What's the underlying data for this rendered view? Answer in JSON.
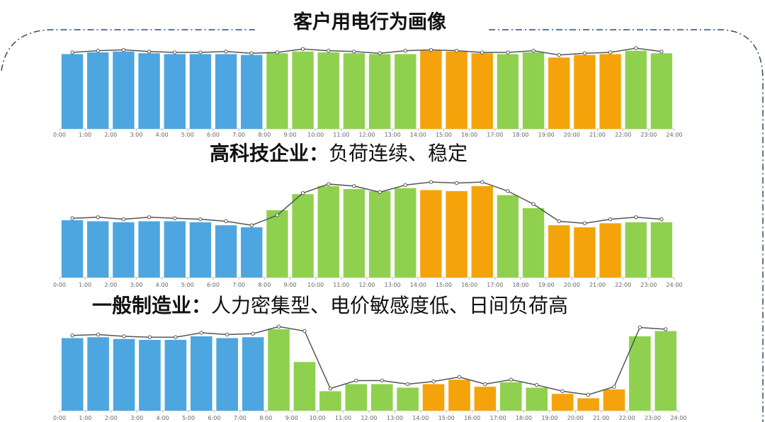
{
  "title": "客户用电行为画像",
  "chart_data": [
    {
      "type": "bar",
      "xtick_labels": [
        "0:00",
        "1:00",
        "2:00",
        "3:00",
        "4:00",
        "5:00",
        "6:00",
        "7:00",
        "8:00",
        "9:00",
        "10:00",
        "11:00",
        "12:00",
        "13:00",
        "14:00",
        "15:00",
        "16:00",
        "17:00",
        "18:00",
        "19:00",
        "20:00",
        "21:00",
        "22:00",
        "23:00",
        "24:00"
      ],
      "values": [
        88,
        90,
        91,
        89,
        88,
        88,
        88,
        87,
        89,
        91,
        90,
        89,
        88,
        88,
        92,
        91,
        89,
        88,
        90,
        84,
        87,
        88,
        92,
        89
      ],
      "line_values": [
        90,
        92,
        93,
        91,
        90,
        90,
        91,
        89,
        90,
        94,
        92,
        91,
        89,
        92,
        93,
        92,
        90,
        90,
        92,
        87,
        89,
        90,
        95,
        91
      ],
      "bar_colors": [
        "#4da6e0",
        "#4da6e0",
        "#4da6e0",
        "#4da6e0",
        "#4da6e0",
        "#4da6e0",
        "#4da6e0",
        "#4da6e0",
        "#8fd14f",
        "#8fd14f",
        "#8fd14f",
        "#8fd14f",
        "#8fd14f",
        "#8fd14f",
        "#f5a30a",
        "#f5a30a",
        "#f5a30a",
        "#8fd14f",
        "#8fd14f",
        "#f5a30a",
        "#f5a30a",
        "#f5a30a",
        "#8fd14f",
        "#8fd14f"
      ],
      "line_color": "#555555",
      "ylim": [
        0,
        100
      ]
    },
    {
      "type": "bar",
      "title": "高科技企业：",
      "subtitle": "负荷连续、稳定",
      "xtick_labels": [
        "0:00",
        "1:00",
        "2:00",
        "3:00",
        "4:00",
        "5:00",
        "6:00",
        "7:00",
        "8:00",
        "9:00",
        "10:00",
        "11:00",
        "12:00",
        "13:00",
        "14:00",
        "15:00",
        "16:00",
        "17:00",
        "18:00",
        "19:00",
        "20:00",
        "21:00",
        "22:00",
        "23:00",
        "24:00"
      ],
      "values": [
        57,
        56,
        55,
        56,
        56,
        55,
        52,
        50,
        67,
        83,
        91,
        88,
        86,
        89,
        87,
        86,
        91,
        82,
        69,
        52,
        50,
        54,
        55,
        55
      ],
      "line_values": [
        59,
        60,
        58,
        60,
        59,
        58,
        56,
        52,
        62,
        84,
        93,
        91,
        85,
        92,
        95,
        94,
        95,
        86,
        73,
        56,
        54,
        58,
        60,
        58
      ],
      "bar_colors": [
        "#4da6e0",
        "#4da6e0",
        "#4da6e0",
        "#4da6e0",
        "#4da6e0",
        "#4da6e0",
        "#4da6e0",
        "#4da6e0",
        "#8fd14f",
        "#8fd14f",
        "#8fd14f",
        "#8fd14f",
        "#8fd14f",
        "#8fd14f",
        "#f5a30a",
        "#f5a30a",
        "#f5a30a",
        "#8fd14f",
        "#8fd14f",
        "#f5a30a",
        "#f5a30a",
        "#f5a30a",
        "#8fd14f",
        "#8fd14f"
      ],
      "line_color": "#555555",
      "ylim": [
        0,
        100
      ]
    },
    {
      "type": "bar",
      "title": "一般制造业：",
      "subtitle": "人力密集型、电价敏感度低、日间负荷高",
      "xtick_labels": [
        "0:00",
        "1:00",
        "2:00",
        "3:00",
        "4:00",
        "5:00",
        "6:00",
        "7:00",
        "8:00",
        "9:00",
        "10:00",
        "11:00",
        "12:00",
        "13:00",
        "14:00",
        "15:00",
        "16:00",
        "17:00",
        "18:00",
        "19:00",
        "20:00",
        "21:00",
        "22:00",
        "23:00",
        "24:00"
      ],
      "values": [
        82,
        83,
        81,
        80,
        80,
        84,
        82,
        83,
        92,
        55,
        22,
        30,
        30,
        26,
        30,
        35,
        27,
        32,
        26,
        19,
        14,
        24,
        84,
        90
      ],
      "line_values": [
        85,
        86,
        84,
        83,
        83,
        88,
        86,
        87,
        95,
        90,
        25,
        34,
        34,
        30,
        33,
        38,
        30,
        35,
        29,
        22,
        18,
        27,
        94,
        92
      ],
      "bar_colors": [
        "#4da6e0",
        "#4da6e0",
        "#4da6e0",
        "#4da6e0",
        "#4da6e0",
        "#4da6e0",
        "#4da6e0",
        "#4da6e0",
        "#8fd14f",
        "#8fd14f",
        "#8fd14f",
        "#8fd14f",
        "#8fd14f",
        "#8fd14f",
        "#f5a30a",
        "#f5a30a",
        "#f5a30a",
        "#8fd14f",
        "#8fd14f",
        "#f5a30a",
        "#f5a30a",
        "#f5a30a",
        "#8fd14f",
        "#8fd14f"
      ],
      "line_color": "#555555",
      "ylim": [
        0,
        100
      ]
    }
  ]
}
